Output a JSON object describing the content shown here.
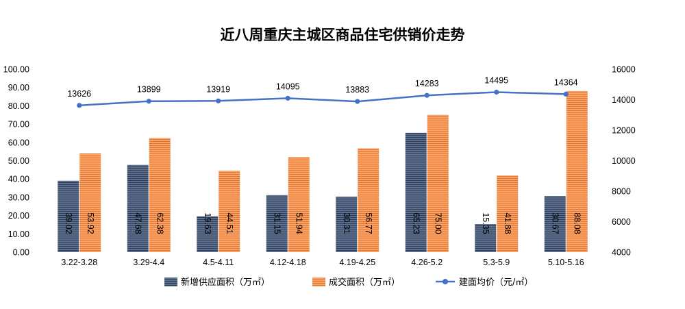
{
  "chart_data": {
    "type": "bar",
    "title": "近八周重庆主城区商品住宅供销价走势",
    "categories": [
      "3.22-3.28",
      "3.29-4.4",
      "4.5-4.11",
      "4.12-4.18",
      "4.19-4.25",
      "4.26-5.2",
      "5.3-5.9",
      "5.10-5.16"
    ],
    "series": [
      {
        "name": "新增供应面积（万㎡）",
        "type": "bar",
        "axis": "left",
        "values": [
          39.02,
          47.68,
          19.63,
          31.15,
          30.31,
          65.23,
          15.35,
          30.67
        ],
        "labels": [
          "39.02",
          "47.68",
          "19.63",
          "31.15",
          "30.31",
          "65.23",
          "15.35",
          "30.67"
        ],
        "color": "#44546a"
      },
      {
        "name": "成交面积（万㎡）",
        "type": "bar",
        "axis": "left",
        "values": [
          53.92,
          62.38,
          44.51,
          51.94,
          56.77,
          75.0,
          41.88,
          88.08
        ],
        "labels": [
          "53.92",
          "62.38",
          "44.51",
          "51.94",
          "56.77",
          "75.00",
          "41.88",
          "88.08"
        ],
        "color": "#ed7d31"
      },
      {
        "name": "建面均价（元/㎡）",
        "type": "line",
        "axis": "right",
        "values": [
          13626,
          13899,
          13919,
          14095,
          13883,
          14283,
          14495,
          14364
        ],
        "labels": [
          "13626",
          "13899",
          "13919",
          "14095",
          "13883",
          "14283",
          "14495",
          "14364"
        ],
        "color": "#4472c4"
      }
    ],
    "y_left": {
      "min": 0,
      "max": 100,
      "step": 10,
      "tick_labels": [
        "0.00",
        "10.00",
        "20.00",
        "30.00",
        "40.00",
        "50.00",
        "60.00",
        "70.00",
        "80.00",
        "90.00",
        "100.00"
      ]
    },
    "y_right": {
      "min": 4000,
      "max": 16000,
      "step": 2000,
      "tick_labels": [
        "4000",
        "6000",
        "8000",
        "10000",
        "12000",
        "14000",
        "16000"
      ]
    },
    "grid": false,
    "legend_position": "bottom"
  }
}
